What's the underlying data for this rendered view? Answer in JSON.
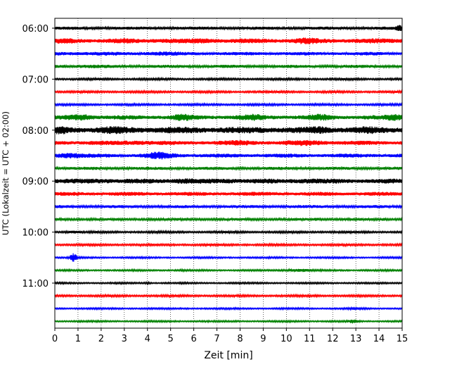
{
  "chart_data": {
    "type": "line",
    "title": "",
    "xlabel": "Zeit  [min]",
    "ylabel": "UTC (Lokalzeit = UTC + 02:00)",
    "xlim": [
      0,
      15
    ],
    "x_ticks": [
      "0",
      "1",
      "2",
      "3",
      "4",
      "5",
      "6",
      "7",
      "8",
      "9",
      "10",
      "11",
      "12",
      "13",
      "14",
      "15"
    ],
    "y_ticks": [
      {
        "label": "06:00",
        "row": 0
      },
      {
        "label": "07:00",
        "row": 4
      },
      {
        "label": "08:00",
        "row": 8
      },
      {
        "label": "09:00",
        "row": 12
      },
      {
        "label": "10:00",
        "row": 16
      },
      {
        "label": "11:00",
        "row": 20
      }
    ],
    "grid": "vertical dotted lines at each minute",
    "colors": [
      "#000000",
      "#ff0000",
      "#0000ff",
      "#008000"
    ],
    "traces": [
      {
        "start": "06:00",
        "color": "#000000",
        "amplitude": 0.35,
        "bursts": [
          {
            "x": 14.9,
            "amp": 0.8,
            "width": 0.15
          }
        ]
      },
      {
        "start": "06:15",
        "color": "#ff0000",
        "amplitude": 0.55,
        "bursts": [
          {
            "x": 0.5,
            "amp": 0.7,
            "width": 0.4
          },
          {
            "x": 3.0,
            "amp": 0.6,
            "width": 0.5
          },
          {
            "x": 4.8,
            "amp": 0.6,
            "width": 0.5
          },
          {
            "x": 6.5,
            "amp": 0.7,
            "width": 0.5
          },
          {
            "x": 10.8,
            "amp": 0.8,
            "width": 0.5
          },
          {
            "x": 13.5,
            "amp": 0.6,
            "width": 0.5
          }
        ]
      },
      {
        "start": "06:30",
        "color": "#0000ff",
        "amplitude": 0.4,
        "bursts": [
          {
            "x": 1.5,
            "amp": 0.5,
            "width": 0.8
          },
          {
            "x": 4.5,
            "amp": 0.55,
            "width": 0.8
          }
        ]
      },
      {
        "start": "06:45",
        "color": "#008000",
        "amplitude": 0.35,
        "bursts": [
          {
            "x": 1.0,
            "amp": 0.45,
            "width": 1.0
          }
        ]
      },
      {
        "start": "07:00",
        "color": "#000000",
        "amplitude": 0.25,
        "bursts": []
      },
      {
        "start": "07:15",
        "color": "#ff0000",
        "amplitude": 0.25,
        "bursts": []
      },
      {
        "start": "07:30",
        "color": "#0000ff",
        "amplitude": 0.25,
        "bursts": []
      },
      {
        "start": "07:45",
        "color": "#008000",
        "amplitude": 0.5,
        "bursts": [
          {
            "x": 1.2,
            "amp": 0.9,
            "width": 0.5
          },
          {
            "x": 5.5,
            "amp": 0.9,
            "width": 0.4
          },
          {
            "x": 8.5,
            "amp": 0.8,
            "width": 0.5
          },
          {
            "x": 11.5,
            "amp": 0.8,
            "width": 0.5
          },
          {
            "x": 14.7,
            "amp": 0.9,
            "width": 0.4
          }
        ]
      },
      {
        "start": "08:00",
        "color": "#000000",
        "amplitude": 0.75,
        "bursts": [
          {
            "x": 0.3,
            "amp": 1.0,
            "width": 0.3
          },
          {
            "x": 2.5,
            "amp": 0.9,
            "width": 0.5
          },
          {
            "x": 11.5,
            "amp": 1.0,
            "width": 0.3
          },
          {
            "x": 13.5,
            "amp": 0.9,
            "width": 0.3
          }
        ]
      },
      {
        "start": "08:15",
        "color": "#ff0000",
        "amplitude": 0.5,
        "bursts": [
          {
            "x": 3.5,
            "amp": 0.7,
            "width": 0.6
          },
          {
            "x": 8.0,
            "amp": 0.65,
            "width": 0.7
          },
          {
            "x": 11.0,
            "amp": 0.75,
            "width": 0.8
          }
        ]
      },
      {
        "start": "08:30",
        "color": "#0000ff",
        "amplitude": 0.45,
        "bursts": [
          {
            "x": 0.6,
            "amp": 0.9,
            "width": 0.5
          },
          {
            "x": 4.5,
            "amp": 0.9,
            "width": 0.6
          }
        ]
      },
      {
        "start": "08:45",
        "color": "#008000",
        "amplitude": 0.35,
        "bursts": []
      },
      {
        "start": "09:00",
        "color": "#000000",
        "amplitude": 0.55,
        "bursts": [
          {
            "x": 2.0,
            "amp": 0.7,
            "width": 0.6
          },
          {
            "x": 5.5,
            "amp": 0.75,
            "width": 0.6
          },
          {
            "x": 7.5,
            "amp": 0.7,
            "width": 0.6
          },
          {
            "x": 10.8,
            "amp": 0.7,
            "width": 0.6
          }
        ]
      },
      {
        "start": "09:15",
        "color": "#ff0000",
        "amplitude": 0.45,
        "bursts": []
      },
      {
        "start": "09:30",
        "color": "#0000ff",
        "amplitude": 0.35,
        "bursts": []
      },
      {
        "start": "09:45",
        "color": "#008000",
        "amplitude": 0.3,
        "bursts": [
          {
            "x": 11.3,
            "amp": 0.5,
            "width": 0.1
          },
          {
            "x": 14.2,
            "amp": 0.45,
            "width": 0.15
          }
        ]
      },
      {
        "start": "10:00",
        "color": "#000000",
        "amplitude": 0.25,
        "bursts": [
          {
            "x": 0.8,
            "amp": 0.45,
            "width": 0.3
          }
        ]
      },
      {
        "start": "10:15",
        "color": "#ff0000",
        "amplitude": 0.25,
        "bursts": []
      },
      {
        "start": "10:30",
        "color": "#0000ff",
        "amplitude": 0.2,
        "bursts": [
          {
            "x": 0.8,
            "amp": 1.0,
            "width": 0.15
          }
        ]
      },
      {
        "start": "10:45",
        "color": "#008000",
        "amplitude": 0.2,
        "bursts": [
          {
            "x": 10.5,
            "amp": 0.5,
            "width": 0.5
          },
          {
            "x": 5.5,
            "amp": 0.3,
            "width": 0.1
          }
        ]
      },
      {
        "start": "11:00",
        "color": "#000000",
        "amplitude": 0.2,
        "bursts": [
          {
            "x": 4.0,
            "amp": 0.35,
            "width": 0.1
          }
        ]
      },
      {
        "start": "11:15",
        "color": "#ff0000",
        "amplitude": 0.25,
        "bursts": []
      },
      {
        "start": "11:30",
        "color": "#0000ff",
        "amplitude": 0.2,
        "bursts": [
          {
            "x": 13.0,
            "amp": 0.3,
            "width": 0.3
          }
        ]
      },
      {
        "start": "11:45",
        "color": "#008000",
        "amplitude": 0.2,
        "bursts": [
          {
            "x": 12.9,
            "amp": 0.5,
            "width": 0.2
          }
        ]
      }
    ]
  }
}
